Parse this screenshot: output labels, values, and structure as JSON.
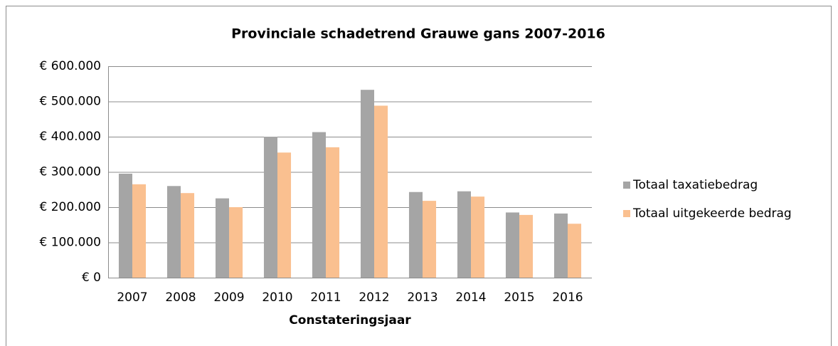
{
  "chart_data": {
    "type": "bar",
    "title": "Provinciale schadetrend Grauwe gans 2007-2016",
    "x_label": "Constateringsjaar",
    "categories": [
      "2007",
      "2008",
      "2009",
      "2010",
      "2011",
      "2012",
      "2013",
      "2014",
      "2015",
      "2016"
    ],
    "series": [
      {
        "name": "Totaal taxatiebedrag",
        "color": "#a5a5a5",
        "values": [
          295000,
          260000,
          225000,
          400000,
          413000,
          533000,
          243000,
          245000,
          185000,
          182000
        ]
      },
      {
        "name": "Totaal uitgekeerde bedrag",
        "color": "#fac090",
        "values": [
          265000,
          240000,
          200000,
          355000,
          370000,
          488000,
          218000,
          230000,
          178000,
          153000
        ]
      }
    ],
    "ylim": [
      0,
      600000
    ],
    "yticks": [
      {
        "value": 0,
        "label": "€ 0"
      },
      {
        "value": 100000,
        "label": "€ 100.000"
      },
      {
        "value": 200000,
        "label": "€ 200.000"
      },
      {
        "value": 300000,
        "label": "€ 300.000"
      },
      {
        "value": 400000,
        "label": "€ 400.000"
      },
      {
        "value": 500000,
        "label": "€ 500.000"
      },
      {
        "value": 600000,
        "label": "€ 600.000"
      }
    ],
    "grid": true,
    "legend": "right"
  }
}
